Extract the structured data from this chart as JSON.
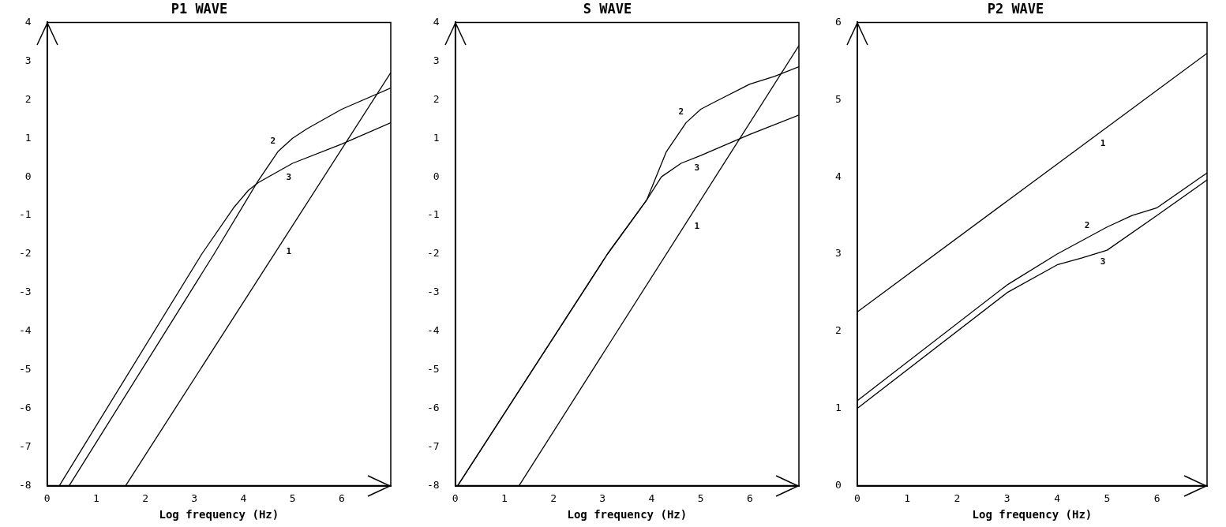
{
  "chart_data": [
    {
      "type": "line",
      "title": "P1 WAVE",
      "xlabel": "Log frequency (Hz)",
      "xlim": [
        0,
        7
      ],
      "xticks": [
        0,
        1,
        2,
        3,
        4,
        5,
        6
      ],
      "ylim": [
        -8,
        4
      ],
      "yticks": [
        -8,
        -7,
        -6,
        -5,
        -4,
        -3,
        -2,
        -1,
        0,
        1,
        2,
        3,
        4
      ],
      "grid": false,
      "series": [
        {
          "name": "1",
          "color": "#000000",
          "x": [
            1.6,
            7
          ],
          "values": [
            -8,
            2.7
          ]
        },
        {
          "name": "2",
          "color": "#000000",
          "x": [
            0.45,
            3.4,
            4.3,
            4.7,
            5.0,
            5.3,
            6.0,
            7.0
          ],
          "values": [
            -8,
            -2,
            -0.1,
            0.65,
            1.0,
            1.25,
            1.75,
            2.3
          ]
        },
        {
          "name": "3",
          "color": "#000000",
          "x": [
            0.25,
            3.15,
            3.8,
            4.1,
            4.3,
            5.0,
            6.0,
            7.0
          ],
          "values": [
            -8,
            -2,
            -0.8,
            -0.35,
            -0.15,
            0.35,
            0.85,
            1.4
          ]
        }
      ]
    },
    {
      "type": "line",
      "title": "S WAVE",
      "xlabel": "Log frequency (Hz)",
      "xlim": [
        0,
        7
      ],
      "xticks": [
        0,
        1,
        2,
        3,
        4,
        5,
        6
      ],
      "ylim": [
        -8,
        4
      ],
      "yticks": [
        -8,
        -7,
        -6,
        -5,
        -4,
        -3,
        -2,
        -1,
        0,
        1,
        2,
        3,
        4
      ],
      "grid": false,
      "series": [
        {
          "name": "1",
          "color": "#000000",
          "x": [
            1.3,
            7
          ],
          "values": [
            -8,
            3.4
          ]
        },
        {
          "name": "2",
          "color": "#000000",
          "x": [
            0.05,
            3.1,
            3.9,
            4.3,
            4.7,
            5.0,
            5.3,
            6.0,
            6.5,
            7.0
          ],
          "values": [
            -8,
            -2,
            -0.6,
            0.65,
            1.4,
            1.75,
            1.95,
            2.4,
            2.6,
            2.85
          ]
        },
        {
          "name": "3",
          "color": "#000000",
          "x": [
            0.05,
            3.1,
            3.9,
            4.2,
            4.6,
            5.0,
            6.0,
            7.0
          ],
          "values": [
            -8,
            -2,
            -0.6,
            0,
            0.35,
            0.55,
            1.1,
            1.6
          ]
        }
      ]
    },
    {
      "type": "line",
      "title": "P2 WAVE",
      "xlabel": "Log frequency (Hz)",
      "xlim": [
        0,
        7
      ],
      "xticks": [
        0,
        1,
        2,
        3,
        4,
        5,
        6
      ],
      "ylim": [
        0,
        6
      ],
      "yticks": [
        0,
        1,
        2,
        3,
        4,
        5,
        6
      ],
      "grid": false,
      "series": [
        {
          "name": "1",
          "color": "#000000",
          "x": [
            0,
            7
          ],
          "values": [
            2.25,
            5.6
          ]
        },
        {
          "name": "2",
          "color": "#000000",
          "x": [
            0,
            3,
            4,
            5,
            5.5,
            6,
            7
          ],
          "values": [
            1.1,
            2.6,
            3.0,
            3.35,
            3.5,
            3.6,
            4.05
          ]
        },
        {
          "name": "3",
          "color": "#000000",
          "x": [
            0,
            3,
            4,
            4.5,
            5,
            6,
            7
          ],
          "values": [
            1.0,
            2.5,
            2.86,
            2.95,
            3.05,
            3.5,
            3.96
          ]
        }
      ]
    }
  ]
}
